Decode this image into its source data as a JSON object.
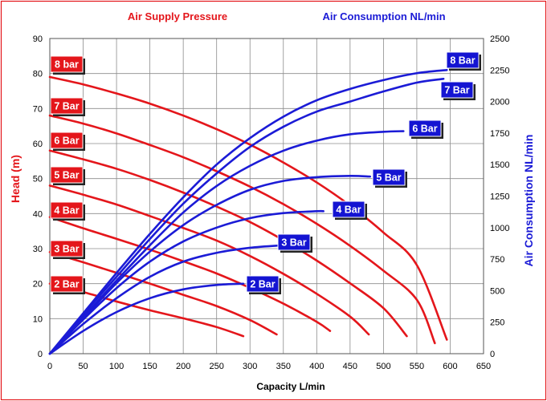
{
  "chart_data": {
    "type": "line",
    "title_left": "Air Supply Pressure",
    "title_right": "Air Consumption NL/min",
    "xlabel": "Capacity L/min",
    "ylabel_left": "Head (m)",
    "ylabel_right": "Air Consumption NL/min",
    "xlim": [
      0,
      650
    ],
    "ylim_left": [
      0,
      90
    ],
    "ylim_right": [
      0,
      2500
    ],
    "x_ticks": [
      "0",
      "50",
      "100",
      "150",
      "200",
      "250",
      "300",
      "350",
      "400",
      "450",
      "500",
      "550",
      "600",
      "650"
    ],
    "y_left_ticks": [
      "0",
      "10",
      "20",
      "30",
      "40",
      "50",
      "60",
      "70",
      "80",
      "90"
    ],
    "y_right_ticks": [
      "0",
      "250",
      "500",
      "750",
      "1000",
      "1250",
      "1500",
      "1750",
      "2000",
      "2250",
      "2500"
    ],
    "grid": true,
    "colors": {
      "head": "#e4161b",
      "air": "#1b1bd6",
      "grid": "#8c8c8c",
      "label_red": "#e4161b",
      "label_blue": "#1414d2"
    },
    "head_series": [
      {
        "name": "2 Bar",
        "label": "2 Bar",
        "x": [
          0,
          50,
          100,
          150,
          200,
          250,
          290
        ],
        "y": [
          20,
          17.6,
          14.9,
          12.4,
          10.1,
          7.6,
          5
        ]
      },
      {
        "name": "3 Bar",
        "label": "3 Bar",
        "x": [
          0,
          50,
          100,
          150,
          200,
          250,
          300,
          340
        ],
        "y": [
          29,
          26.1,
          23.1,
          20,
          16.8,
          13.6,
          9.6,
          5.5
        ]
      },
      {
        "name": "4 Bar",
        "label": "4 Bar",
        "x": [
          0,
          50,
          100,
          150,
          200,
          250,
          300,
          350,
          400,
          420
        ],
        "y": [
          39,
          35.8,
          32.8,
          29.7,
          26.4,
          22.9,
          18.8,
          14.3,
          9.1,
          6.5
        ]
      },
      {
        "name": "5 Bar",
        "label": "5 Bar",
        "x": [
          0,
          50,
          100,
          150,
          200,
          250,
          300,
          350,
          400,
          450,
          478
        ],
        "y": [
          48,
          45.4,
          42.6,
          39.3,
          35.9,
          32.3,
          27.9,
          22.8,
          17.1,
          10.6,
          5.5
        ]
      },
      {
        "name": "6 Bar",
        "label": "6 Bar",
        "x": [
          0,
          50,
          100,
          150,
          200,
          250,
          300,
          350,
          400,
          450,
          500,
          535
        ],
        "y": [
          58,
          55.5,
          52.8,
          49.6,
          46,
          42,
          37.6,
          32.4,
          26.6,
          20.1,
          13,
          5
        ]
      },
      {
        "name": "7 Bar",
        "label": "7 Bar",
        "x": [
          0,
          50,
          100,
          150,
          200,
          250,
          300,
          350,
          400,
          450,
          500,
          550,
          577
        ],
        "y": [
          68,
          65.7,
          62.9,
          59.6,
          56.1,
          52.1,
          47.7,
          42.7,
          37.1,
          30.8,
          23.7,
          15.4,
          3
        ]
      },
      {
        "name": "8 Bar",
        "label": "8 bar",
        "x": [
          0,
          50,
          100,
          150,
          200,
          250,
          300,
          350,
          400,
          450,
          500,
          550,
          595
        ],
        "y": [
          79,
          76.9,
          74.3,
          71.4,
          68,
          64.1,
          59.7,
          54.6,
          48.9,
          42.3,
          34.6,
          25.3,
          4
        ]
      }
    ],
    "air_series": [
      {
        "name": "2 Bar",
        "label": "2 Bar",
        "x": [
          0,
          50,
          100,
          150,
          200,
          250,
          290
        ],
        "y": [
          0,
          180,
          330,
          440,
          510,
          545,
          555
        ]
      },
      {
        "name": "3 Bar",
        "label": "3 Bar",
        "x": [
          0,
          50,
          100,
          150,
          200,
          250,
          300,
          350
        ],
        "y": [
          0,
          235,
          440,
          610,
          730,
          800,
          840,
          860
        ]
      },
      {
        "name": "4 Bar",
        "label": "4 Bar",
        "x": [
          0,
          50,
          100,
          150,
          200,
          250,
          300,
          350,
          400,
          410
        ],
        "y": [
          0,
          270,
          520,
          730,
          890,
          1000,
          1075,
          1115,
          1130,
          1130
        ]
      },
      {
        "name": "5 Bar",
        "label": "5 Bar",
        "x": [
          0,
          50,
          100,
          150,
          200,
          250,
          300,
          350,
          400,
          450,
          480
        ],
        "y": [
          0,
          280,
          560,
          810,
          1020,
          1180,
          1300,
          1370,
          1400,
          1410,
          1405
        ]
      },
      {
        "name": "6 Bar",
        "label": "6 Bar",
        "x": [
          0,
          50,
          100,
          150,
          200,
          250,
          300,
          350,
          400,
          450,
          500,
          530
        ],
        "y": [
          0,
          290,
          580,
          860,
          1120,
          1330,
          1490,
          1610,
          1690,
          1740,
          1760,
          1765
        ]
      },
      {
        "name": "7 Bar",
        "label": "7 Bar",
        "x": [
          0,
          50,
          100,
          150,
          200,
          250,
          300,
          350,
          400,
          450,
          500,
          550,
          590
        ],
        "y": [
          0,
          310,
          610,
          910,
          1190,
          1430,
          1640,
          1800,
          1920,
          2000,
          2080,
          2150,
          2180
        ]
      },
      {
        "name": "8 Bar",
        "label": "8 Bar",
        "x": [
          0,
          50,
          100,
          150,
          200,
          250,
          300,
          350,
          400,
          450,
          500,
          550,
          595
        ],
        "y": [
          0,
          320,
          640,
          950,
          1240,
          1500,
          1710,
          1880,
          2010,
          2100,
          2170,
          2225,
          2250
        ]
      }
    ]
  }
}
